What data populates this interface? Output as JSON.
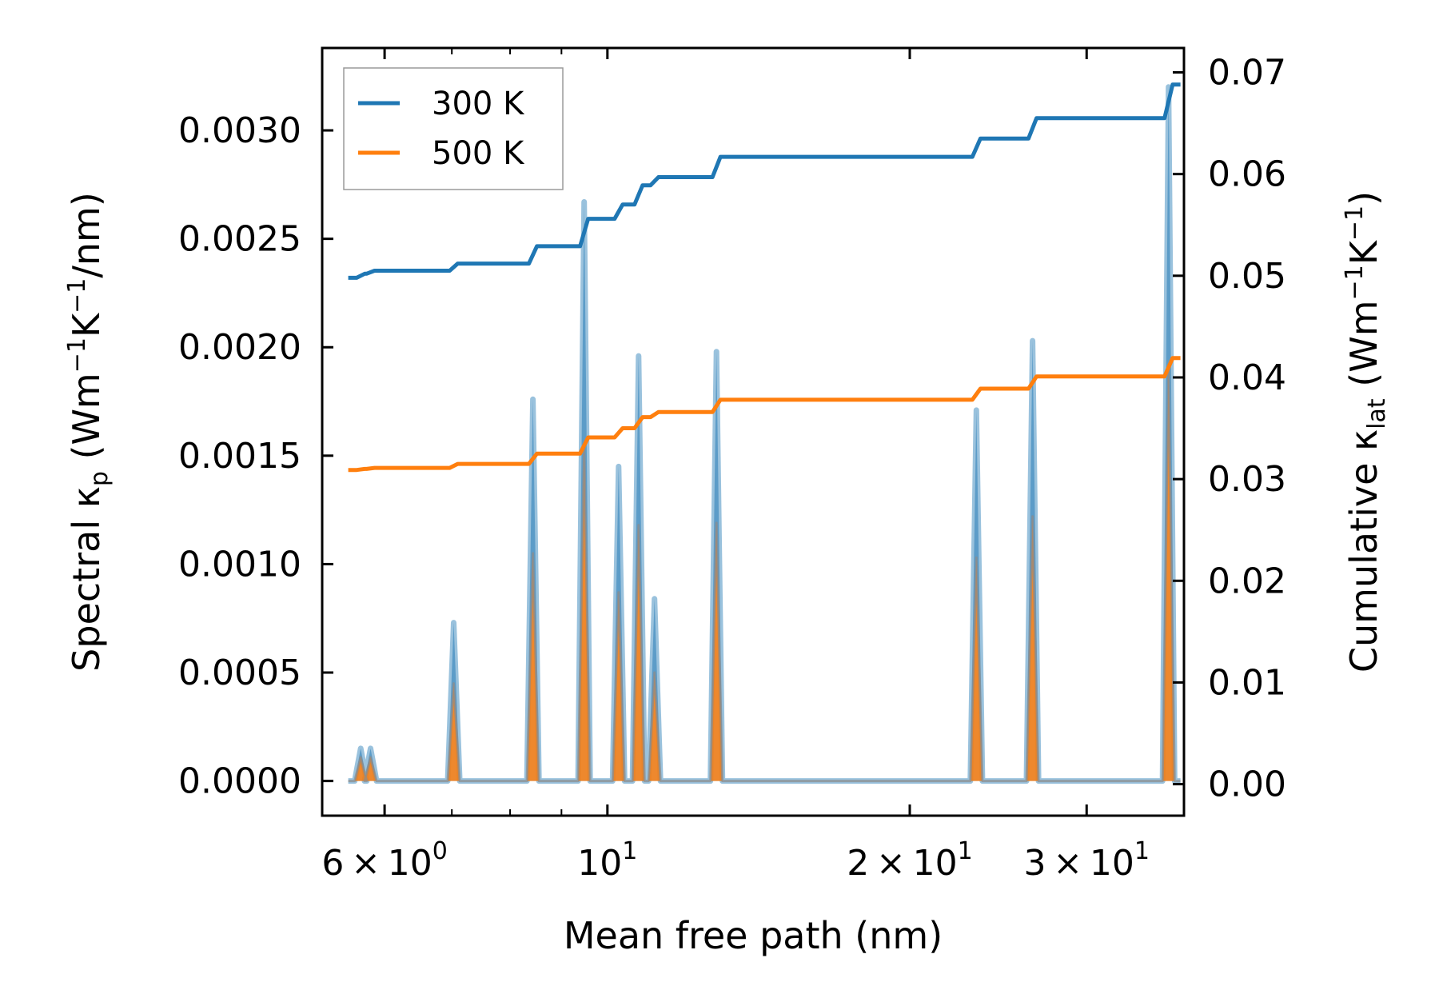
{
  "chart_data": {
    "type": "line",
    "xscale": "log",
    "xlabel": "Mean free path (nm)",
    "ylabel_left": {
      "prefix": "Spectral κ",
      "sub": "p",
      "mid1": " (Wm",
      "sup1": "−1",
      "mid2": "K",
      "sup2": "−1",
      "suffix": "/nm)"
    },
    "ylabel_right": {
      "prefix": "Cumulative κ",
      "sub": "lat",
      "mid1": " (Wm",
      "sup1": "−1",
      "mid2": "K",
      "sup2": "−1",
      "suffix": ")"
    },
    "xlim": [
      5.2,
      37.5
    ],
    "ylim_left": [
      -0.00016,
      0.00338
    ],
    "ylim_right": [
      -0.0031,
      0.0724
    ],
    "x_ticks": [
      {
        "value": 6,
        "mant": "6",
        "exp": "0"
      },
      {
        "value": 10,
        "mant": "",
        "exp": "1"
      },
      {
        "value": 20,
        "mant": "2",
        "exp": "1"
      },
      {
        "value": 30,
        "mant": "3",
        "exp": "1"
      }
    ],
    "y_left_ticks": [
      "0.0000",
      "0.0005",
      "0.0010",
      "0.0015",
      "0.0020",
      "0.0025",
      "0.0030"
    ],
    "y_left_tick_values": [
      0,
      0.0005,
      0.001,
      0.0015,
      0.002,
      0.0025,
      0.003
    ],
    "y_right_ticks": [
      "0.00",
      "0.01",
      "0.02",
      "0.03",
      "0.04",
      "0.05",
      "0.06",
      "0.07"
    ],
    "y_right_tick_values": [
      0,
      0.01,
      0.02,
      0.03,
      0.04,
      0.05,
      0.06,
      0.07
    ],
    "legend": {
      "position": "top-left",
      "entries": [
        "300 K",
        "500 K"
      ]
    },
    "series": [
      {
        "name": "300 K",
        "color": "#1f77b4",
        "spectral_peaks": [
          {
            "x": 5.68,
            "y": 0.00015
          },
          {
            "x": 5.81,
            "y": 0.00015
          },
          {
            "x": 7.03,
            "y": 0.00073
          },
          {
            "x": 8.43,
            "y": 0.00176
          },
          {
            "x": 9.48,
            "y": 0.00267
          },
          {
            "x": 10.26,
            "y": 0.00145
          },
          {
            "x": 10.74,
            "y": 0.00196
          },
          {
            "x": 11.14,
            "y": 0.00084
          },
          {
            "x": 12.84,
            "y": 0.00198
          },
          {
            "x": 23.3,
            "y": 0.00171
          },
          {
            "x": 26.5,
            "y": 0.00203
          },
          {
            "x": 36.2,
            "y": 0.0032
          }
        ],
        "cumulative_steps": [
          {
            "x": 5.52,
            "y": 0.0498
          },
          {
            "x": 5.68,
            "y": 0.0502
          },
          {
            "x": 5.81,
            "y": 0.0505
          },
          {
            "x": 7.03,
            "y": 0.0512
          },
          {
            "x": 8.43,
            "y": 0.0529
          },
          {
            "x": 9.48,
            "y": 0.0556
          },
          {
            "x": 10.26,
            "y": 0.057
          },
          {
            "x": 10.74,
            "y": 0.0589
          },
          {
            "x": 11.14,
            "y": 0.0597
          },
          {
            "x": 12.84,
            "y": 0.0617
          },
          {
            "x": 23.3,
            "y": 0.0635
          },
          {
            "x": 26.5,
            "y": 0.0655
          },
          {
            "x": 36.2,
            "y": 0.0688
          }
        ],
        "x_end": 37.2
      },
      {
        "name": "500 K",
        "color": "#ff7f0e",
        "spectral_peaks": [
          {
            "x": 5.68,
            "y": 0.00011
          },
          {
            "x": 5.81,
            "y": 0.00011
          },
          {
            "x": 7.03,
            "y": 0.00045
          },
          {
            "x": 8.43,
            "y": 0.00105
          },
          {
            "x": 9.48,
            "y": 0.00155
          },
          {
            "x": 10.26,
            "y": 0.00087
          },
          {
            "x": 10.74,
            "y": 0.00118
          },
          {
            "x": 11.14,
            "y": 0.0005
          },
          {
            "x": 12.84,
            "y": 0.00119
          },
          {
            "x": 23.3,
            "y": 0.00103
          },
          {
            "x": 26.5,
            "y": 0.00122
          },
          {
            "x": 36.2,
            "y": 0.00192
          }
        ],
        "cumulative_steps": [
          {
            "x": 5.52,
            "y": 0.0309
          },
          {
            "x": 5.68,
            "y": 0.031
          },
          {
            "x": 5.81,
            "y": 0.0311
          },
          {
            "x": 7.03,
            "y": 0.0315
          },
          {
            "x": 8.43,
            "y": 0.0325
          },
          {
            "x": 9.48,
            "y": 0.0341
          },
          {
            "x": 10.26,
            "y": 0.035
          },
          {
            "x": 10.74,
            "y": 0.0361
          },
          {
            "x": 11.14,
            "y": 0.0366
          },
          {
            "x": 12.84,
            "y": 0.0378
          },
          {
            "x": 23.3,
            "y": 0.0389
          },
          {
            "x": 26.5,
            "y": 0.0401
          },
          {
            "x": 36.2,
            "y": 0.0419
          }
        ],
        "x_end": 37.2
      }
    ]
  }
}
